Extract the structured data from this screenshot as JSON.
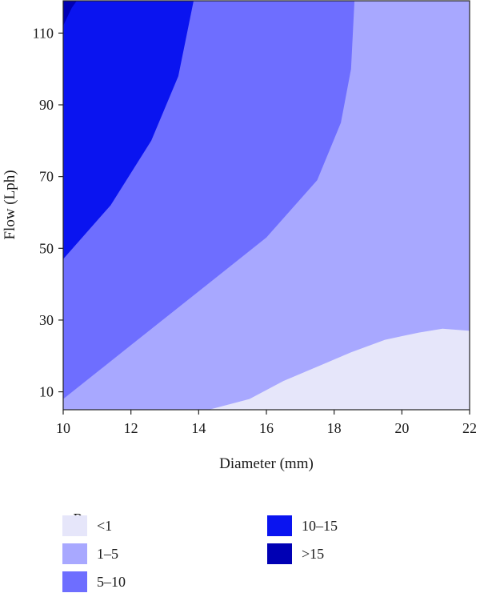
{
  "chart_data": {
    "type": "contour",
    "xlabel": "Diameter (mm)",
    "ylabel": "Flow (Lph)",
    "xlim": [
      10,
      22
    ],
    "ylim": [
      5,
      119
    ],
    "x_ticks": [
      "10",
      "12",
      "14",
      "16",
      "18",
      "20",
      "22"
    ],
    "y_ticks": [
      "10",
      "30",
      "50",
      "70",
      "90",
      "110"
    ],
    "legend_title": "P",
    "levels": [
      {
        "label": "<1",
        "color": "#e6e6fa"
      },
      {
        "label": "1–5",
        "color": "#a8a8ff"
      },
      {
        "label": "5–10",
        "color": "#6e6eff"
      },
      {
        "label": "10–15",
        "color": "#0a14f0"
      },
      {
        "label": ">15",
        "color": "#0000b4"
      }
    ],
    "contour_boundaries": [
      {
        "between": "<1 | 1–5",
        "points": [
          [
            14.3,
            5
          ],
          [
            15.5,
            8
          ],
          [
            16.5,
            13
          ],
          [
            17.5,
            17
          ],
          [
            18.5,
            21
          ],
          [
            19.5,
            24.5
          ],
          [
            20.5,
            26.5
          ],
          [
            21.2,
            27.6
          ],
          [
            22,
            27
          ]
        ]
      },
      {
        "between": "1–5 | 5–10",
        "points": [
          [
            10,
            8
          ],
          [
            12,
            23
          ],
          [
            14,
            38
          ],
          [
            16,
            53
          ],
          [
            17.5,
            69
          ],
          [
            18.2,
            85
          ],
          [
            18.5,
            100
          ],
          [
            18.6,
            119
          ]
        ]
      },
      {
        "between": "5–10 | 10–15",
        "points": [
          [
            10,
            47
          ],
          [
            11.4,
            62
          ],
          [
            12.6,
            80
          ],
          [
            13.4,
            98
          ],
          [
            13.85,
            119
          ]
        ]
      },
      {
        "between": "10–15 | >15",
        "points": [
          [
            10,
            112
          ],
          [
            10.1,
            114
          ],
          [
            10.25,
            117
          ],
          [
            10.4,
            119
          ]
        ]
      }
    ]
  }
}
